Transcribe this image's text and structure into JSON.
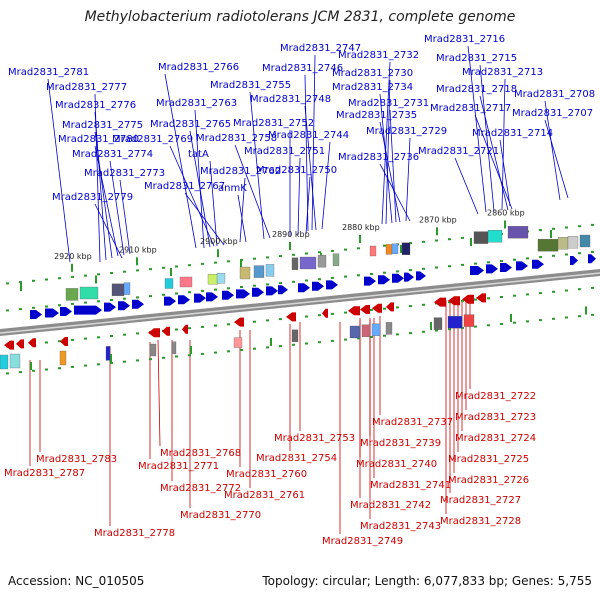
{
  "title": "Methylobacterium radiotolerans JCM 2831, complete genome",
  "accession": "Accession: NC_010505",
  "stats": "Topology: circular; Length: 6,077,833 bp; Genes: 5,755",
  "colors": {
    "forward": "#0000cc",
    "reverse": "#cc0000",
    "backbone": "#8c8c8c",
    "tick": "#2a9a2a"
  },
  "scale_marks": [
    {
      "label": "2920 kbp"
    },
    {
      "label": "2910 kbp"
    },
    {
      "label": "2900 kbp"
    },
    {
      "label": "2890 kbp"
    },
    {
      "label": "2880 kbp"
    },
    {
      "label": "2870 kbp"
    },
    {
      "label": "2860 kbp"
    }
  ],
  "top_labels": [
    "Mrad2831_2781",
    "Mrad2831_2777",
    "Mrad2831_2776",
    "Mrad2831_2775",
    "Mrad2831_2780",
    "Mrad2831_2774",
    "Mrad2831_2773",
    "Mrad2831_2779",
    "Mrad2831_2766",
    "Mrad2831_2763",
    "Mrad2831_2765",
    "Mrad2831_2769",
    "tatA",
    "Mrad2831_2767",
    "Mrad2831_2762",
    "anmK",
    "Mrad2831_2755",
    "Mrad2831_2758",
    "Mrad2831_2752",
    "Mrad2831_2751",
    "Mrad2831_2750",
    "Mrad2831_2747",
    "Mrad2831_2746",
    "Mrad2831_2748",
    "Mrad2831_2744",
    "Mrad2831_2732",
    "Mrad2831_2730",
    "Mrad2831_2734",
    "Mrad2831_2731",
    "Mrad2831_2735",
    "Mrad2831_2729",
    "Mrad2831_2736",
    "Mrad2831_2716",
    "Mrad2831_2715",
    "Mrad2831_2713",
    "Mrad2831_2718",
    "Mrad2831_2717",
    "Mrad2831_2708",
    "Mrad2831_2707",
    "Mrad2831_2714",
    "Mrad2831_2721"
  ],
  "bottom_labels": [
    "Mrad2831_2783",
    "Mrad2831_2787",
    "Mrad2831_2768",
    "Mrad2831_2771",
    "Mrad2831_2772",
    "Mrad2831_2770",
    "Mrad2831_2778",
    "Mrad2831_2753",
    "Mrad2831_2754",
    "Mrad2831_2760",
    "Mrad2831_2761",
    "Mrad2831_2737",
    "Mrad2831_2739",
    "Mrad2831_2740",
    "Mrad2831_2741",
    "Mrad2831_2742",
    "Mrad2831_2743",
    "Mrad2831_2749",
    "Mrad2831_2722",
    "Mrad2831_2723",
    "Mrad2831_2724",
    "Mrad2831_2725",
    "Mrad2831_2726",
    "Mrad2831_2727",
    "Mrad2831_2728"
  ]
}
